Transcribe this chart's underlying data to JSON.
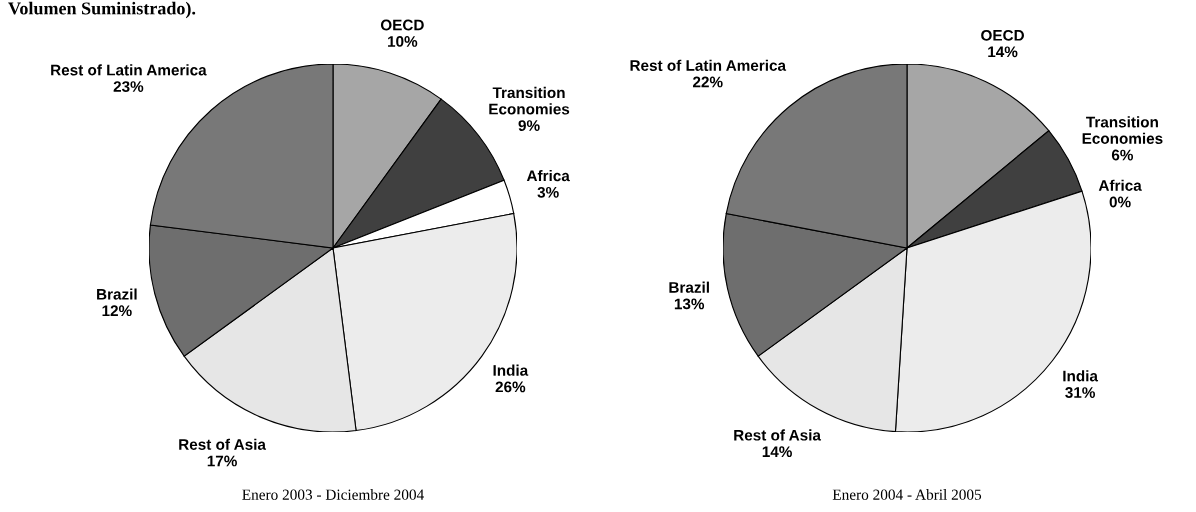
{
  "chart_data": [
    {
      "type": "pie",
      "title": "Enero 2003 - Diciembre 2004",
      "annotations": [
        "Volumen Suministrado)."
      ],
      "categories": [
        "OECD",
        "Transition\nEconomies",
        "Africa",
        "India",
        "Rest of Asia",
        "Brazil",
        "Rest of Latin America"
      ],
      "values": [
        10,
        9,
        3,
        26,
        17,
        12,
        23
      ],
      "value_labels": [
        "10%",
        "9%",
        "3%",
        "26%",
        "17%",
        "12%",
        "23%"
      ],
      "colors": [
        "#a6a6a6",
        "#404040",
        "#ffffff",
        "#ececec",
        "#e6e6e6",
        "#6e6e6e",
        "#787878"
      ]
    },
    {
      "type": "pie",
      "title": "Enero 2004 - Abril 2005",
      "categories": [
        "OECD",
        "Transition\nEconomies",
        "Africa",
        "India",
        "Rest of Asia",
        "Brazil",
        "Rest of Latin America"
      ],
      "values": [
        14,
        6,
        0,
        31,
        14,
        13,
        22
      ],
      "value_labels": [
        "14%",
        "6%",
        "0%",
        "31%",
        "14%",
        "13%",
        "22%"
      ],
      "colors": [
        "#a6a6a6",
        "#404040",
        "#ffffff",
        "#ececec",
        "#e6e6e6",
        "#6e6e6e",
        "#787878"
      ]
    }
  ]
}
